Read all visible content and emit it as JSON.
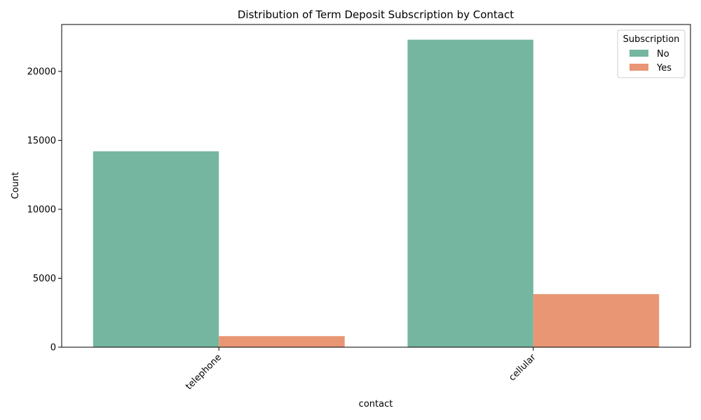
{
  "chart_data": {
    "type": "bar",
    "title": "Distribution of Term Deposit Subscription by Contact",
    "xlabel": "contact",
    "ylabel": "Count",
    "categories": [
      "telephone",
      "cellular"
    ],
    "series": [
      {
        "name": "No",
        "values": [
          14200,
          22300
        ],
        "color": "#74b6a0"
      },
      {
        "name": "Yes",
        "values": [
          800,
          3850
        ],
        "color": "#e89673"
      }
    ],
    "ylim": [
      0,
      23400
    ],
    "yticks": [
      0,
      5000,
      10000,
      15000,
      20000
    ],
    "grid": false,
    "legend": {
      "title": "Subscription",
      "position": "top-right"
    },
    "xtick_rotation": 45
  }
}
